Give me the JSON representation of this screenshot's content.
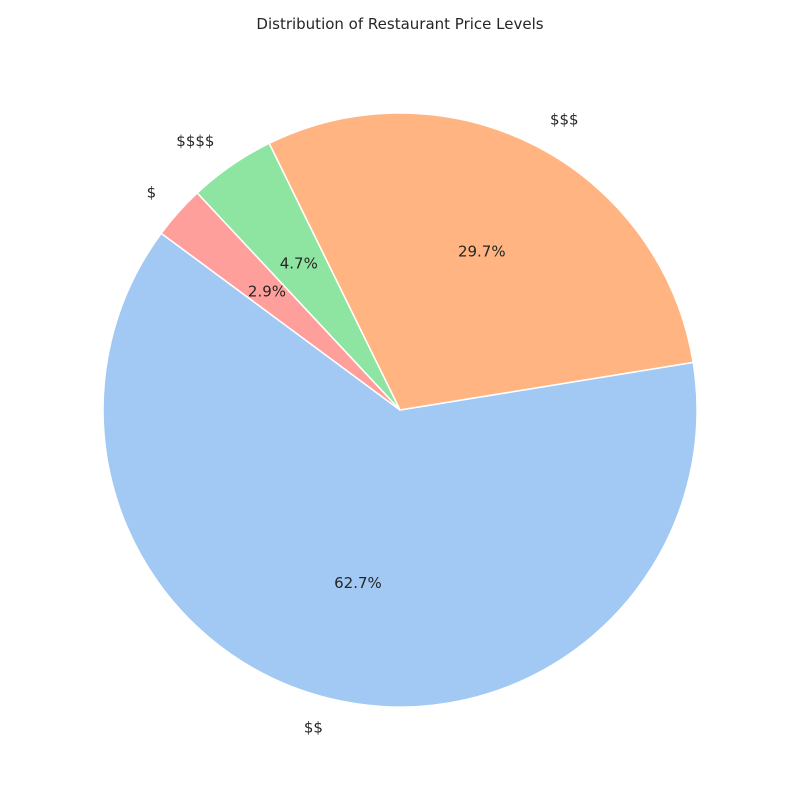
{
  "chart_data": {
    "type": "pie",
    "title": "Distribution of Restaurant Price Levels",
    "slices": [
      {
        "label": "$$",
        "value": 62.7,
        "pct_text": "62.7%",
        "color": "#a1c9f4"
      },
      {
        "label": "$$$",
        "value": 29.7,
        "pct_text": "29.7%",
        "color": "#ffb482"
      },
      {
        "label": "$$$$",
        "value": 4.7,
        "pct_text": "4.7%",
        "color": "#8de5a1"
      },
      {
        "label": "$",
        "value": 2.9,
        "pct_text": "2.9%",
        "color": "#ff9f9b"
      }
    ]
  }
}
